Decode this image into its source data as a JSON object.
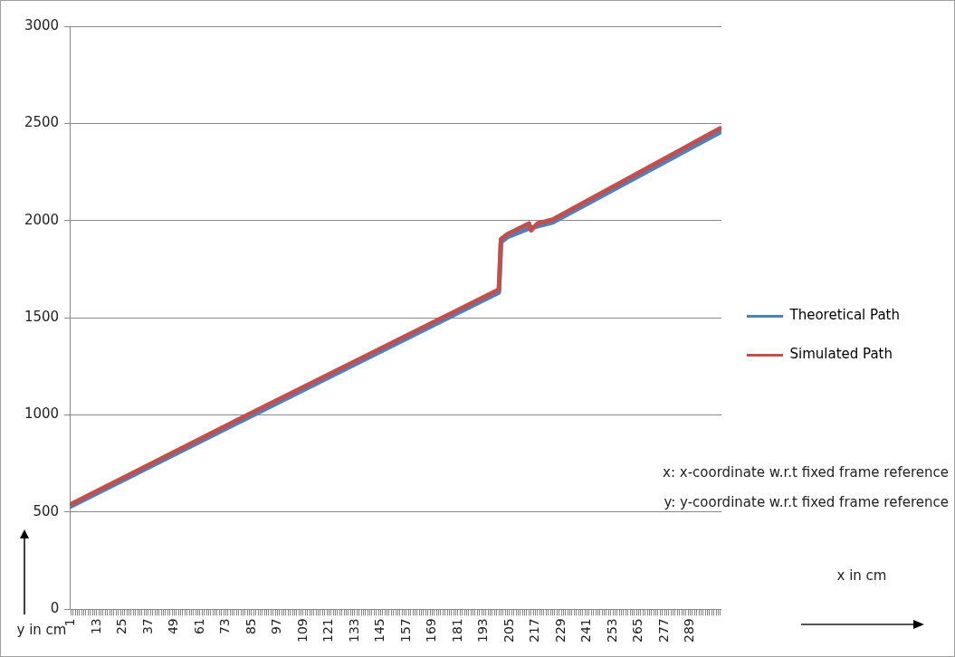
{
  "chart_data": {
    "type": "line",
    "xlim": [
      0.5,
      303.5
    ],
    "xticks": [
      1,
      {
        "value": 2,
        "label": null
      },
      {
        "value": 3,
        "label": null
      },
      {
        "value": 4,
        "label": null
      },
      {
        "value": 5,
        "label": null
      },
      {
        "value": 6,
        "label": null
      },
      {
        "value": 7,
        "label": null
      },
      {
        "value": 8,
        "label": null
      },
      {
        "value": 9,
        "label": null
      },
      {
        "value": 10,
        "label": null
      },
      {
        "value": 11,
        "label": null
      },
      {
        "value": 12,
        "label": null
      },
      13,
      {
        "value": 14,
        "label": null
      },
      {
        "value": 15,
        "label": null
      },
      {
        "value": 16,
        "label": null
      },
      {
        "value": 17,
        "label": null
      },
      {
        "value": 18,
        "label": null
      },
      {
        "value": 19,
        "label": null
      },
      {
        "value": 20,
        "label": null
      },
      {
        "value": 21,
        "label": null
      },
      {
        "value": 22,
        "label": null
      },
      {
        "value": 23,
        "label": null
      },
      {
        "value": 24,
        "label": null
      },
      25,
      {
        "value": 26,
        "label": null
      },
      {
        "value": 27,
        "label": null
      },
      {
        "value": 28,
        "label": null
      },
      {
        "value": 29,
        "label": null
      },
      {
        "value": 30,
        "label": null
      },
      {
        "value": 31,
        "label": null
      },
      {
        "value": 32,
        "label": null
      },
      {
        "value": 33,
        "label": null
      },
      {
        "value": 34,
        "label": null
      },
      {
        "value": 35,
        "label": null
      },
      {
        "value": 36,
        "label": null
      },
      37,
      {
        "value": 38,
        "label": null
      },
      {
        "value": 39,
        "label": null
      },
      {
        "value": 40,
        "label": null
      },
      {
        "value": 41,
        "label": null
      },
      {
        "value": 42,
        "label": null
      },
      {
        "value": 43,
        "label": null
      },
      {
        "value": 44,
        "label": null
      },
      {
        "value": 45,
        "label": null
      },
      {
        "value": 46,
        "label": null
      },
      {
        "value": 47,
        "label": null
      },
      {
        "value": 48,
        "label": null
      },
      49,
      {
        "value": 50,
        "label": null
      },
      {
        "value": 51,
        "label": null
      },
      {
        "value": 52,
        "label": null
      },
      {
        "value": 53,
        "label": null
      },
      {
        "value": 54,
        "label": null
      },
      {
        "value": 55,
        "label": null
      },
      {
        "value": 56,
        "label": null
      },
      {
        "value": 57,
        "label": null
      },
      {
        "value": 58,
        "label": null
      },
      {
        "value": 59,
        "label": null
      },
      {
        "value": 60,
        "label": null
      },
      61,
      {
        "value": 62,
        "label": null
      },
      {
        "value": 63,
        "label": null
      },
      {
        "value": 64,
        "label": null
      },
      {
        "value": 65,
        "label": null
      },
      {
        "value": 66,
        "label": null
      },
      {
        "value": 67,
        "label": null
      },
      {
        "value": 68,
        "label": null
      },
      {
        "value": 69,
        "label": null
      },
      {
        "value": 70,
        "label": null
      },
      {
        "value": 71,
        "label": null
      },
      {
        "value": 72,
        "label": null
      },
      73,
      {
        "value": 74,
        "label": null
      },
      {
        "value": 75,
        "label": null
      },
      {
        "value": 76,
        "label": null
      },
      {
        "value": 77,
        "label": null
      },
      {
        "value": 78,
        "label": null
      },
      {
        "value": 79,
        "label": null
      },
      {
        "value": 80,
        "label": null
      },
      {
        "value": 81,
        "label": null
      },
      {
        "value": 82,
        "label": null
      },
      {
        "value": 83,
        "label": null
      },
      {
        "value": 84,
        "label": null
      },
      85,
      {
        "value": 86,
        "label": null
      },
      {
        "value": 87,
        "label": null
      },
      {
        "value": 88,
        "label": null
      },
      {
        "value": 89,
        "label": null
      },
      {
        "value": 90,
        "label": null
      },
      {
        "value": 91,
        "label": null
      },
      {
        "value": 92,
        "label": null
      },
      {
        "value": 93,
        "label": null
      },
      {
        "value": 94,
        "label": null
      },
      {
        "value": 95,
        "label": null
      },
      {
        "value": 96,
        "label": null
      },
      97,
      {
        "value": 98,
        "label": null
      },
      {
        "value": 99,
        "label": null
      },
      {
        "value": 100,
        "label": null
      },
      {
        "value": 101,
        "label": null
      },
      {
        "value": 102,
        "label": null
      },
      {
        "value": 103,
        "label": null
      },
      {
        "value": 104,
        "label": null
      },
      {
        "value": 105,
        "label": null
      },
      {
        "value": 106,
        "label": null
      },
      {
        "value": 107,
        "label": null
      },
      {
        "value": 108,
        "label": null
      },
      109,
      {
        "value": 110,
        "label": null
      },
      {
        "value": 111,
        "label": null
      },
      {
        "value": 112,
        "label": null
      },
      {
        "value": 113,
        "label": null
      },
      {
        "value": 114,
        "label": null
      },
      {
        "value": 115,
        "label": null
      },
      {
        "value": 116,
        "label": null
      },
      {
        "value": 117,
        "label": null
      },
      {
        "value": 118,
        "label": null
      },
      {
        "value": 119,
        "label": null
      },
      {
        "value": 120,
        "label": null
      },
      121,
      {
        "value": 122,
        "label": null
      },
      {
        "value": 123,
        "label": null
      },
      {
        "value": 124,
        "label": null
      },
      {
        "value": 125,
        "label": null
      },
      {
        "value": 126,
        "label": null
      },
      {
        "value": 127,
        "label": null
      },
      {
        "value": 128,
        "label": null
      },
      {
        "value": 129,
        "label": null
      },
      {
        "value": 130,
        "label": null
      },
      {
        "value": 131,
        "label": null
      },
      {
        "value": 132,
        "label": null
      },
      133,
      {
        "value": 134,
        "label": null
      },
      {
        "value": 135,
        "label": null
      },
      {
        "value": 136,
        "label": null
      },
      {
        "value": 137,
        "label": null
      },
      {
        "value": 138,
        "label": null
      },
      {
        "value": 139,
        "label": null
      },
      {
        "value": 140,
        "label": null
      },
      {
        "value": 141,
        "label": null
      },
      {
        "value": 142,
        "label": null
      },
      {
        "value": 143,
        "label": null
      },
      {
        "value": 144,
        "label": null
      },
      145,
      {
        "value": 146,
        "label": null
      },
      {
        "value": 147,
        "label": null
      },
      {
        "value": 148,
        "label": null
      },
      {
        "value": 149,
        "label": null
      },
      {
        "value": 150,
        "label": null
      },
      {
        "value": 151,
        "label": null
      },
      {
        "value": 152,
        "label": null
      },
      {
        "value": 153,
        "label": null
      },
      {
        "value": 154,
        "label": null
      },
      {
        "value": 155,
        "label": null
      },
      {
        "value": 156,
        "label": null
      },
      157,
      {
        "value": 158,
        "label": null
      },
      {
        "value": 159,
        "label": null
      },
      {
        "value": 160,
        "label": null
      },
      {
        "value": 161,
        "label": null
      },
      {
        "value": 162,
        "label": null
      },
      {
        "value": 163,
        "label": null
      },
      {
        "value": 164,
        "label": null
      },
      {
        "value": 165,
        "label": null
      },
      {
        "value": 166,
        "label": null
      },
      {
        "value": 167,
        "label": null
      },
      {
        "value": 168,
        "label": null
      },
      169,
      {
        "value": 170,
        "label": null
      },
      {
        "value": 171,
        "label": null
      },
      {
        "value": 172,
        "label": null
      },
      {
        "value": 173,
        "label": null
      },
      {
        "value": 174,
        "label": null
      },
      {
        "value": 175,
        "label": null
      },
      {
        "value": 176,
        "label": null
      },
      {
        "value": 177,
        "label": null
      },
      {
        "value": 178,
        "label": null
      },
      {
        "value": 179,
        "label": null
      },
      {
        "value": 180,
        "label": null
      },
      181,
      {
        "value": 182,
        "label": null
      },
      {
        "value": 183,
        "label": null
      },
      {
        "value": 184,
        "label": null
      },
      {
        "value": 185,
        "label": null
      },
      {
        "value": 186,
        "label": null
      },
      {
        "value": 187,
        "label": null
      },
      {
        "value": 188,
        "label": null
      },
      {
        "value": 189,
        "label": null
      },
      {
        "value": 190,
        "label": null
      },
      {
        "value": 191,
        "label": null
      },
      {
        "value": 192,
        "label": null
      },
      193,
      {
        "value": 194,
        "label": null
      },
      {
        "value": 195,
        "label": null
      },
      {
        "value": 196,
        "label": null
      },
      {
        "value": 197,
        "label": null
      },
      {
        "value": 198,
        "label": null
      },
      {
        "value": 199,
        "label": null
      },
      {
        "value": 200,
        "label": null
      },
      {
        "value": 201,
        "label": null
      },
      {
        "value": 202,
        "label": null
      },
      {
        "value": 203,
        "label": null
      },
      {
        "value": 204,
        "label": null
      },
      205,
      {
        "value": 206,
        "label": null
      },
      {
        "value": 207,
        "label": null
      },
      {
        "value": 208,
        "label": null
      },
      {
        "value": 209,
        "label": null
      },
      {
        "value": 210,
        "label": null
      },
      {
        "value": 211,
        "label": null
      },
      {
        "value": 212,
        "label": null
      },
      {
        "value": 213,
        "label": null
      },
      {
        "value": 214,
        "label": null
      },
      {
        "value": 215,
        "label": null
      },
      {
        "value": 216,
        "label": null
      },
      217,
      {
        "value": 218,
        "label": null
      },
      {
        "value": 219,
        "label": null
      },
      {
        "value": 220,
        "label": null
      },
      {
        "value": 221,
        "label": null
      },
      {
        "value": 222,
        "label": null
      },
      {
        "value": 223,
        "label": null
      },
      {
        "value": 224,
        "label": null
      },
      {
        "value": 225,
        "label": null
      },
      {
        "value": 226,
        "label": null
      },
      {
        "value": 227,
        "label": null
      },
      {
        "value": 228,
        "label": null
      },
      229,
      {
        "value": 230,
        "label": null
      },
      {
        "value": 231,
        "label": null
      },
      {
        "value": 232,
        "label": null
      },
      {
        "value": 233,
        "label": null
      },
      {
        "value": 234,
        "label": null
      },
      {
        "value": 235,
        "label": null
      },
      {
        "value": 236,
        "label": null
      },
      {
        "value": 237,
        "label": null
      },
      {
        "value": 238,
        "label": null
      },
      {
        "value": 239,
        "label": null
      },
      {
        "value": 240,
        "label": null
      },
      241,
      {
        "value": 242,
        "label": null
      },
      {
        "value": 243,
        "label": null
      },
      {
        "value": 244,
        "label": null
      },
      {
        "value": 245,
        "label": null
      },
      {
        "value": 246,
        "label": null
      },
      {
        "value": 247,
        "label": null
      },
      {
        "value": 248,
        "label": null
      },
      {
        "value": 249,
        "label": null
      },
      {
        "value": 250,
        "label": null
      },
      {
        "value": 251,
        "label": null
      },
      {
        "value": 252,
        "label": null
      },
      253,
      {
        "value": 254,
        "label": null
      },
      {
        "value": 255,
        "label": null
      },
      {
        "value": 256,
        "label": null
      },
      {
        "value": 257,
        "label": null
      },
      {
        "value": 258,
        "label": null
      },
      {
        "value": 259,
        "label": null
      },
      {
        "value": 260,
        "label": null
      },
      {
        "value": 261,
        "label": null
      },
      {
        "value": 262,
        "label": null
      },
      {
        "value": 263,
        "label": null
      },
      {
        "value": 264,
        "label": null
      },
      265,
      {
        "value": 266,
        "label": null
      },
      {
        "value": 267,
        "label": null
      },
      {
        "value": 268,
        "label": null
      },
      {
        "value": 269,
        "label": null
      },
      {
        "value": 270,
        "label": null
      },
      {
        "value": 271,
        "label": null
      },
      {
        "value": 272,
        "label": null
      },
      {
        "value": 273,
        "label": null
      },
      {
        "value": 274,
        "label": null
      },
      {
        "value": 275,
        "label": null
      },
      {
        "value": 276,
        "label": null
      },
      277,
      {
        "value": 278,
        "label": null
      },
      {
        "value": 279,
        "label": null
      },
      {
        "value": 280,
        "label": null
      },
      {
        "value": 281,
        "label": null
      },
      {
        "value": 282,
        "label": null
      },
      {
        "value": 283,
        "label": null
      },
      {
        "value": 284,
        "label": null
      },
      {
        "value": 285,
        "label": null
      },
      {
        "value": 286,
        "label": null
      },
      {
        "value": 287,
        "label": null
      },
      {
        "value": 288,
        "label": null
      },
      289,
      {
        "value": 290,
        "label": null
      },
      {
        "value": 291,
        "label": null
      },
      {
        "value": 292,
        "label": null
      },
      {
        "value": 293,
        "label": null
      },
      {
        "value": 294,
        "label": null
      },
      {
        "value": 295,
        "label": null
      },
      {
        "value": 296,
        "label": null
      },
      {
        "value": 297,
        "label": null
      },
      {
        "value": 298,
        "label": null
      },
      {
        "value": 299,
        "label": null
      },
      {
        "value": 300,
        "label": null
      },
      {
        "value": 301,
        "label": null
      },
      {
        "value": 302,
        "label": null
      },
      {
        "value": 303,
        "label": null
      }
    ],
    "ylim": [
      0,
      3000
    ],
    "yticks": [
      0,
      500,
      1000,
      1500,
      2000,
      2500,
      3000
    ],
    "grid": "y",
    "legend": "right",
    "marker": "none",
    "line_style": "solid",
    "series": [
      {
        "name": "Theoretical Path",
        "color": "#4f81bd",
        "x": [
          1,
          84,
          200,
          201,
          204,
          214,
          225,
          303
        ],
        "values": [
          530,
          990,
          1630,
          1890,
          1915,
          1960,
          1990,
          2455
        ]
      },
      {
        "name": "Simulated Path",
        "color": "#c0504d",
        "x": [
          1,
          84,
          200,
          201,
          204,
          214,
          215,
          218,
          225,
          303
        ],
        "values": [
          540,
          1005,
          1645,
          1905,
          1930,
          1985,
          1950,
          1985,
          2005,
          2475
        ]
      }
    ],
    "annotations": [
      "x: x-coordinate w.r.t fixed frame reference",
      "y: y-coordinate w.r.t fixed frame reference",
      "x in cm",
      "y in cm"
    ]
  }
}
